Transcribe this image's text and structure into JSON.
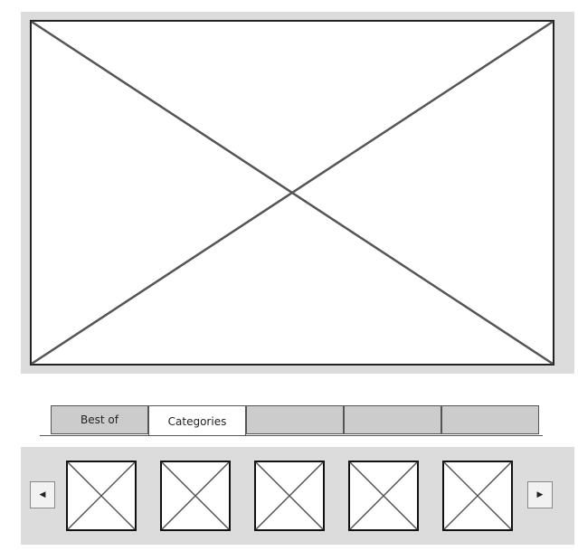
{
  "hero": {
    "image": "placeholder-image"
  },
  "tabs": [
    {
      "label": "Best of",
      "active": false
    },
    {
      "label": "Categories",
      "active": true
    },
    {
      "label": "",
      "active": false
    },
    {
      "label": "",
      "active": false
    },
    {
      "label": "",
      "active": false
    }
  ],
  "carousel": {
    "prev_icon": "triangle-left-icon",
    "next_icon": "triangle-right-icon",
    "thumbnails": [
      "placeholder-image",
      "placeholder-image",
      "placeholder-image",
      "placeholder-image",
      "placeholder-image"
    ]
  },
  "colors": {
    "frame_bg": "#dcdcdc",
    "tab_bg": "#cccccc",
    "stroke": "#555555"
  }
}
